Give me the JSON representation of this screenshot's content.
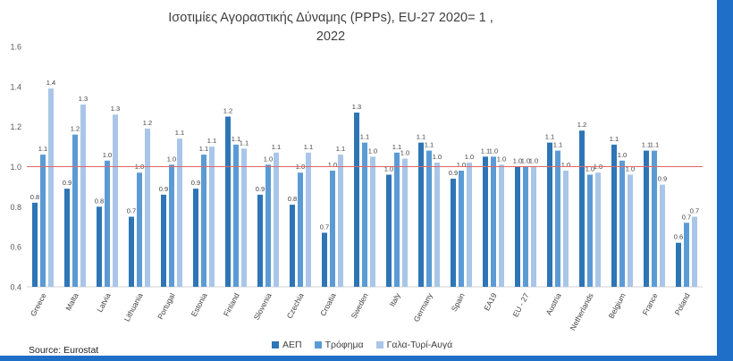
{
  "chart_data": {
    "type": "bar",
    "title_lines": [
      "Ισοτιμίες Αγοραστικής Δύναμης (PPPs),  EU-27 2020= 1 ,",
      "2022"
    ],
    "categories": [
      "Greece",
      "Malta",
      "Latvia",
      "Lithuania",
      "Portugal",
      "Estonia",
      "Finland",
      "Slovenia",
      "Czechia",
      "Croatia",
      "Sweden",
      "Italy",
      "Germany",
      "Spain",
      "EA19",
      "EU - 27",
      "Austria",
      "Netherlands",
      "Belgium",
      "France",
      "Poland"
    ],
    "series": [
      {
        "name": "ΑΕΠ",
        "color": "#2e75b6",
        "values": [
          0.82,
          0.89,
          0.8,
          0.75,
          0.86,
          0.89,
          1.25,
          0.86,
          0.81,
          0.67,
          1.27,
          0.96,
          1.12,
          0.94,
          1.05,
          1.0,
          1.12,
          1.18,
          1.11,
          1.08,
          0.62
        ],
        "labels": [
          "0.8",
          "0.9",
          "0.8",
          "0.7",
          "0.9",
          "0.9",
          "1.2",
          "0.9",
          "0.8",
          "0.7",
          "1.3",
          "1.0",
          "1.1",
          "0.9",
          "1.1",
          "1.0",
          "1.1",
          "1.2",
          "1.1",
          "1.1",
          "0.6"
        ]
      },
      {
        "name": "Τρόφημα",
        "color": "#5b9bd5",
        "values": [
          1.06,
          1.16,
          1.03,
          0.97,
          1.01,
          1.06,
          1.11,
          1.01,
          0.97,
          0.98,
          1.12,
          1.07,
          1.08,
          0.98,
          1.05,
          1.0,
          1.08,
          0.96,
          1.03,
          1.08,
          0.72
        ],
        "labels": [
          "1.1",
          "1.2",
          "1.0",
          "1.0",
          "1.0",
          "1.1",
          "1.1",
          "1.0",
          "1.0",
          "1.0",
          "1.1",
          "1.1",
          "1.1",
          "1.0",
          "1.0",
          "1.0",
          "1.1",
          "1.0",
          "1.0",
          "1.1",
          "0.7"
        ]
      },
      {
        "name": "Γαλα-Τυρί-Αυγά",
        "color": "#a9c6e8",
        "values": [
          1.39,
          1.31,
          1.26,
          1.19,
          1.14,
          1.1,
          1.09,
          1.07,
          1.07,
          1.06,
          1.05,
          1.04,
          1.02,
          1.02,
          1.01,
          1.0,
          0.98,
          0.97,
          0.96,
          0.91,
          0.75
        ],
        "labels": [
          "1.4",
          "1.3",
          "1.3",
          "1.2",
          "1.1",
          "1.1",
          "1.1",
          "1.1",
          "1.1",
          "1.1",
          "1.0",
          "1.0",
          "1.0",
          "1.0",
          "1.0",
          "1.0",
          "1.0",
          "1.0",
          "1.0",
          "0.9",
          "0.7"
        ]
      }
    ],
    "ylim": [
      0.4,
      1.6
    ],
    "yticks": [
      "0.4",
      "0.6",
      "0.8",
      "1.0",
      "1.2",
      "1.4",
      "1.6"
    ],
    "reference_line": {
      "value": 1.0,
      "color": "#e06666"
    },
    "grid": false,
    "legend_position": "bottom"
  },
  "source": "Source: Eurostat"
}
